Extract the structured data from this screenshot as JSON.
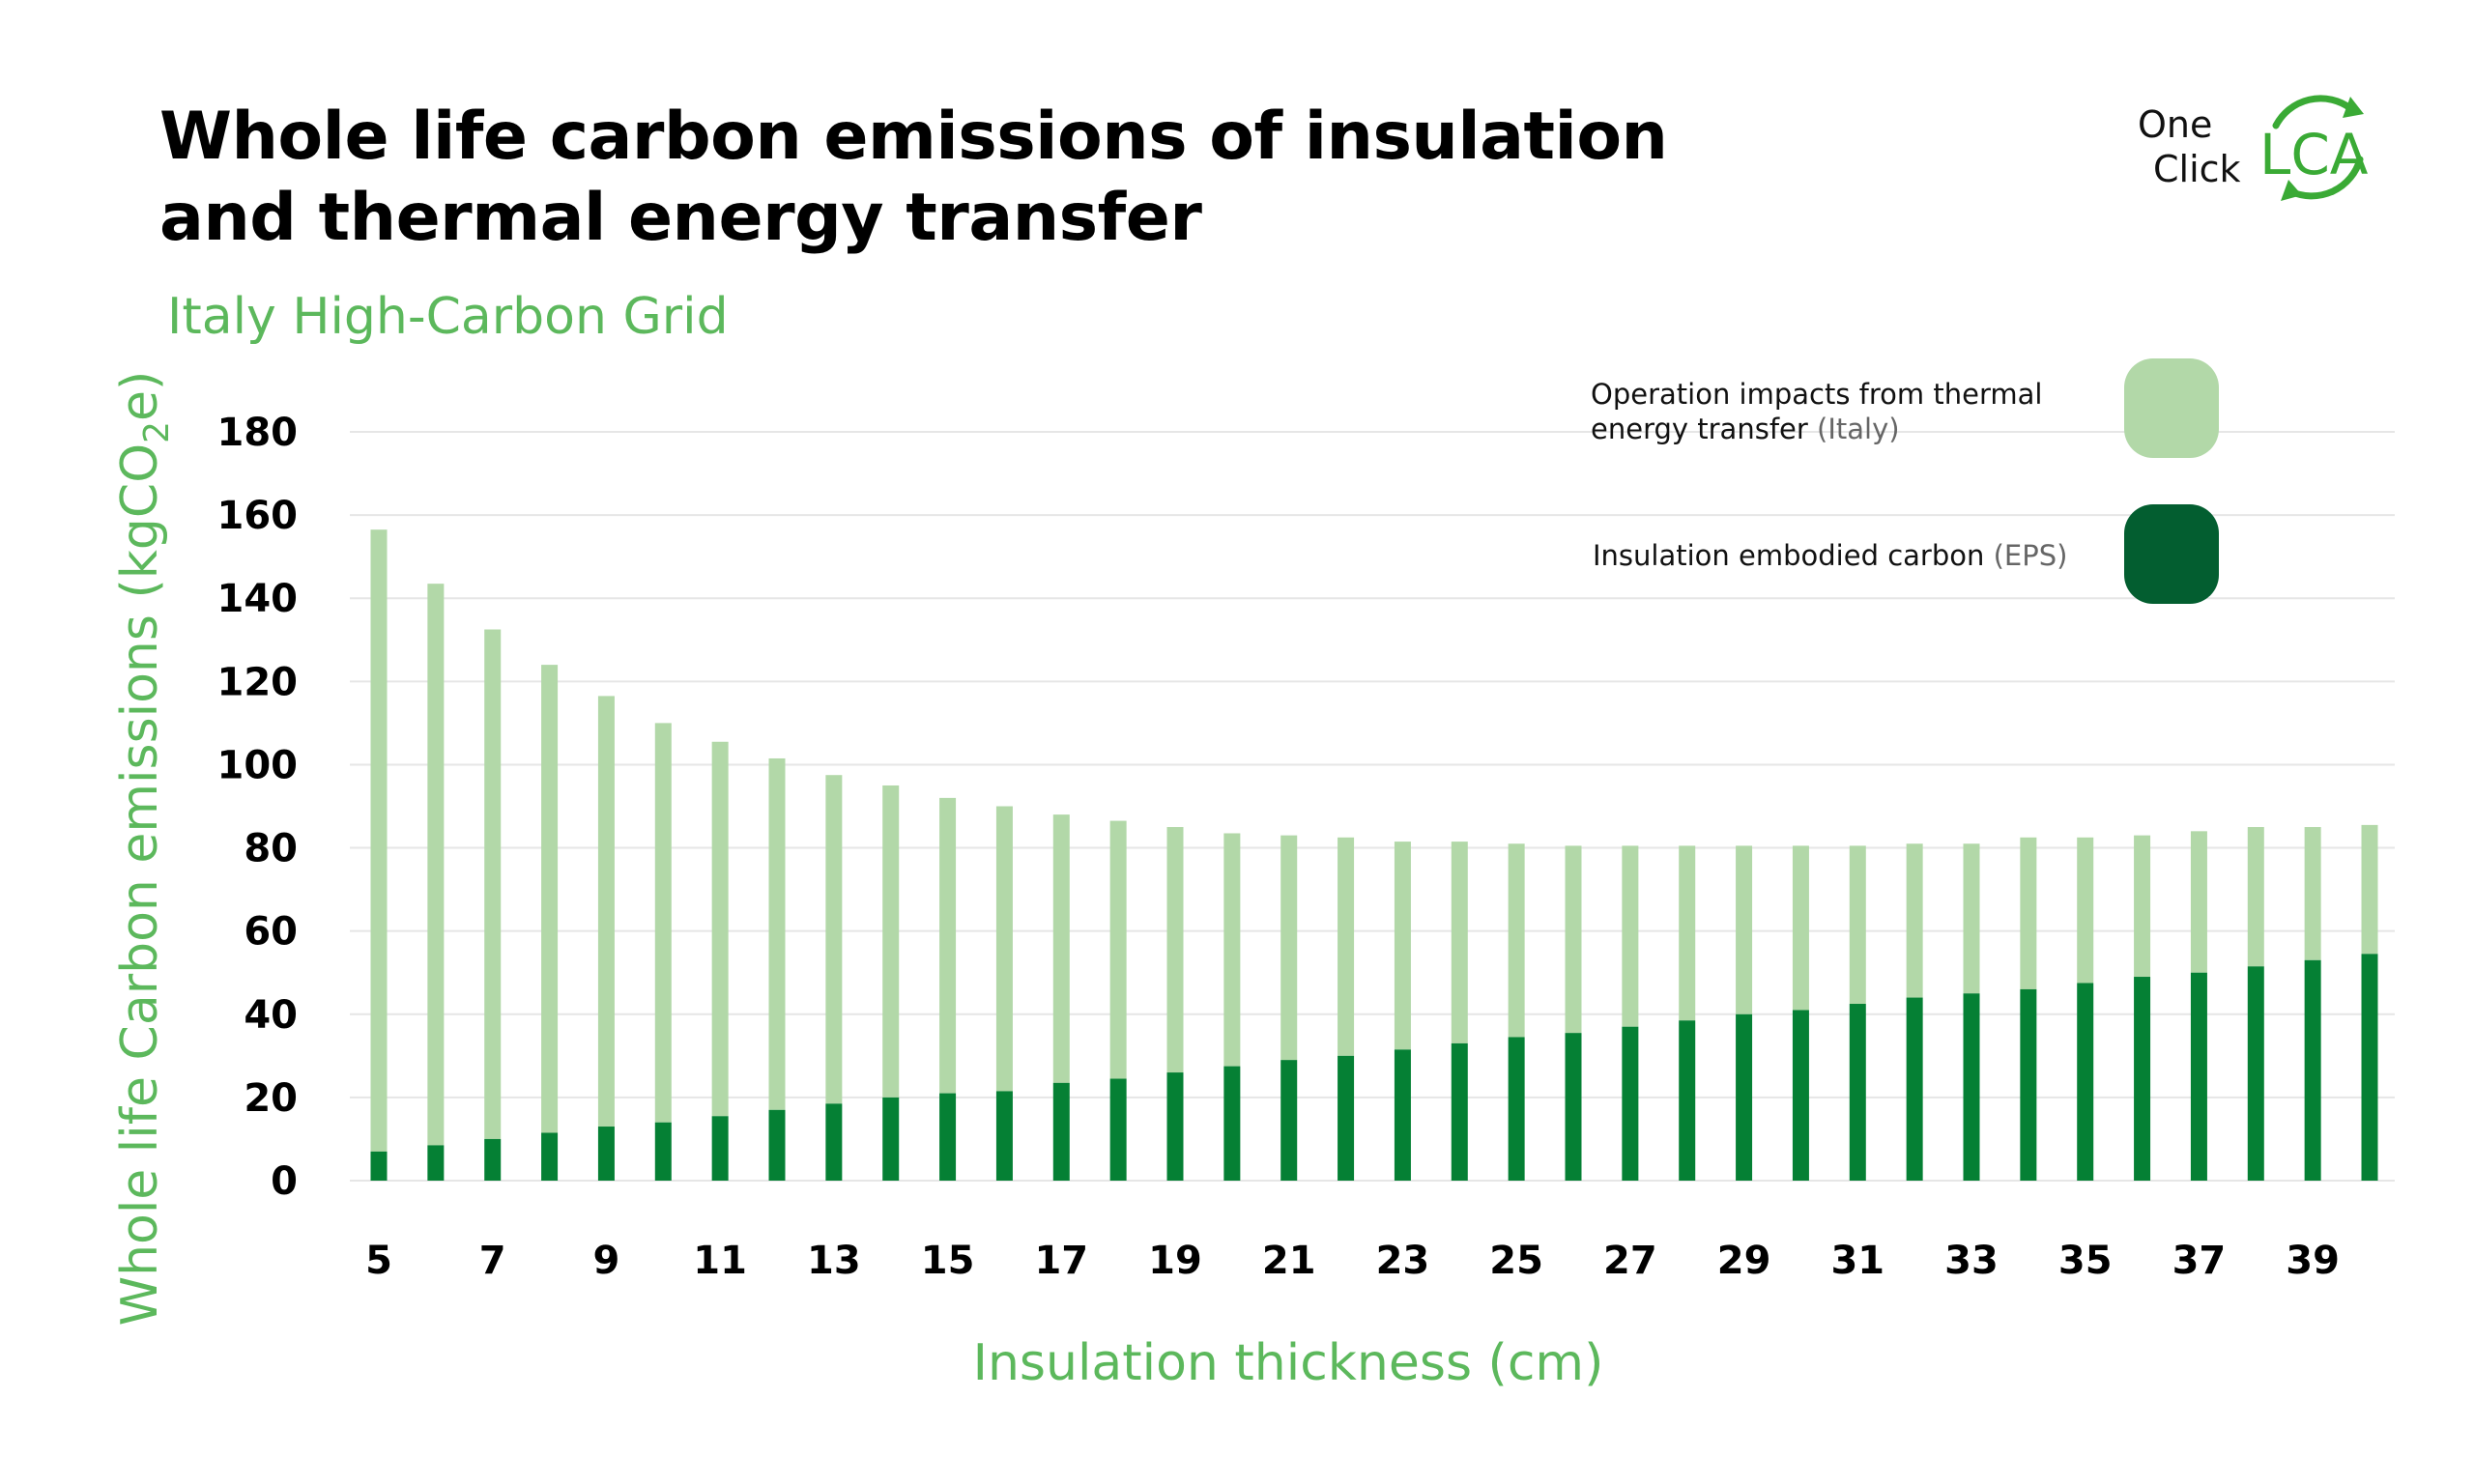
{
  "header": {
    "title_line1": "Whole life carbon emissions of insulation",
    "title_line2": "and thermal energy transfer",
    "subtitle": "Italy High-Carbon Grid"
  },
  "logo": {
    "line1": "One",
    "line2": "Click",
    "mark": "LCA",
    "icon": "recycle-arrows-icon",
    "color": "#3aaa35"
  },
  "colors": {
    "operation": "#b2d8a8",
    "embodied": "#058034",
    "axis_title": "#5cb85c",
    "grid": "#e6e6e6"
  },
  "chart_data": {
    "type": "bar",
    "stacked": true,
    "title": "Whole life carbon emissions of insulation and thermal energy transfer",
    "subtitle": "Italy High-Carbon Grid",
    "xlabel": "Insulation thickness (cm)",
    "ylabel_main": "Whole life Carbon emissions (kgCO",
    "ylabel_sub": "2",
    "ylabel_end": "e)",
    "ylim": [
      0,
      180
    ],
    "yticks": [
      0,
      20,
      40,
      60,
      80,
      100,
      120,
      140,
      160,
      180
    ],
    "x": [
      5,
      6,
      7,
      8,
      9,
      10,
      11,
      12,
      13,
      14,
      15,
      16,
      17,
      18,
      19,
      20,
      21,
      22,
      23,
      24,
      25,
      26,
      27,
      28,
      29,
      30,
      31,
      32,
      33,
      34,
      35,
      36,
      37,
      38,
      39,
      40
    ],
    "xtick_labels": [
      "5",
      "7",
      "9",
      "11",
      "13",
      "15",
      "17",
      "19",
      "21",
      "23",
      "25",
      "27",
      "29",
      "31",
      "33",
      "35",
      "37",
      "39"
    ],
    "legend_position": "top-right",
    "grid": true,
    "series": [
      {
        "key": "embodied",
        "name": "Insulation embodied carbon",
        "name_note": "(EPS)",
        "values": [
          7,
          8.5,
          10,
          11.5,
          13,
          14,
          15.5,
          17,
          18.5,
          20,
          21,
          21.5,
          23.5,
          24.5,
          26,
          27.5,
          29,
          30,
          31.5,
          33,
          34.5,
          35.5,
          37,
          38.5,
          40,
          41,
          42.5,
          44,
          45,
          46,
          47.5,
          49,
          50,
          51.5,
          53,
          54.5
        ]
      },
      {
        "key": "operation",
        "name": "Operation impacts from thermal energy transfer",
        "name_note": "(Italy)",
        "values": [
          149.5,
          135,
          122.5,
          112.5,
          103.5,
          96,
          90,
          84.5,
          79,
          75,
          71,
          68.5,
          64.5,
          62,
          59,
          56,
          54,
          52.5,
          50,
          48.5,
          46.5,
          45,
          43.5,
          42,
          40.5,
          39.5,
          38,
          37,
          36,
          36.5,
          35,
          34,
          34,
          33.5,
          32,
          31
        ]
      }
    ]
  }
}
